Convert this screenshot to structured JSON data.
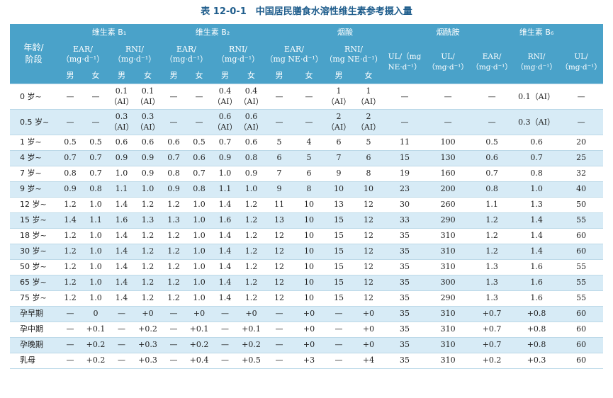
{
  "caption": "表 12-0-1　中国居民膳食水溶性维生素参考摄入量",
  "header": {
    "age_label": [
      "年龄/",
      "阶段"
    ],
    "groups": [
      "维生素 B₁",
      "维生素 B₂",
      "烟酸",
      "烟酰胺",
      "维生素 B₆"
    ],
    "sub": {
      "b1_ear": [
        "EAR/",
        "（mg·d⁻¹）"
      ],
      "b1_rni": [
        "RNI/",
        "（mg·d⁻¹）"
      ],
      "b2_ear": [
        "EAR/",
        "（mg·d⁻¹）"
      ],
      "b2_rni": [
        "RNI/",
        "（mg·d⁻¹）"
      ],
      "niacin_ear": [
        "EAR/",
        "（mg NE·d⁻¹）"
      ],
      "niacin_rni": [
        "RNI/",
        "（mg NE·d⁻¹）"
      ],
      "niacin_ul": [
        "UL/（mg",
        "NE·d⁻¹）"
      ],
      "niacinamide_ul": [
        "UL/",
        "（mg·d⁻¹）"
      ],
      "b6_ear": [
        "EAR/",
        "（mg·d⁻¹）"
      ],
      "b6_rni": [
        "RNI/",
        "（mg·d⁻¹）"
      ],
      "b6_ul": [
        "UL/",
        "（mg·d⁻¹）"
      ]
    },
    "sex": [
      "男",
      "女"
    ]
  },
  "rows": [
    {
      "age": "0 岁~",
      "tall": true,
      "shade": false,
      "full": false,
      "cells": [
        "—",
        "—",
        "0.1\n（AI）",
        "0.1\n（AI）",
        "—",
        "—",
        "0.4\n（AI）",
        "0.4\n（AI）",
        "—",
        "—",
        "1\n（AI）",
        "1\n（AI）",
        "—",
        "—",
        "—",
        "0.1（AI）",
        "—"
      ]
    },
    {
      "age": "0.5 岁~",
      "tall": true,
      "shade": true,
      "full": false,
      "cells": [
        "—",
        "—",
        "0.3\n（AI）",
        "0.3\n（AI）",
        "—",
        "—",
        "0.6\n（AI）",
        "0.6\n（AI）",
        "—",
        "—",
        "2\n（AI）",
        "2\n（AI）",
        "—",
        "—",
        "—",
        "0.3（AI）",
        "—"
      ]
    },
    {
      "age": "1 岁~",
      "shade": false,
      "full": true,
      "cells": [
        "0.5",
        "0.5",
        "0.6",
        "0.6",
        "0.6",
        "0.5",
        "0.7",
        "0.6",
        "5",
        "4",
        "6",
        "5",
        "11",
        "100",
        "0.5",
        "0.6",
        "20"
      ]
    },
    {
      "age": "4 岁~",
      "shade": true,
      "full": true,
      "cells": [
        "0.7",
        "0.7",
        "0.9",
        "0.9",
        "0.7",
        "0.6",
        "0.9",
        "0.8",
        "6",
        "5",
        "7",
        "6",
        "15",
        "130",
        "0.6",
        "0.7",
        "25"
      ]
    },
    {
      "age": "7 岁~",
      "shade": false,
      "full": true,
      "cells": [
        "0.8",
        "0.7",
        "1.0",
        "0.9",
        "0.8",
        "0.7",
        "1.0",
        "0.9",
        "7",
        "6",
        "9",
        "8",
        "19",
        "160",
        "0.7",
        "0.8",
        "32"
      ]
    },
    {
      "age": "9 岁~",
      "shade": true,
      "full": true,
      "cells": [
        "0.9",
        "0.8",
        "1.1",
        "1.0",
        "0.9",
        "0.8",
        "1.1",
        "1.0",
        "9",
        "8",
        "10",
        "10",
        "23",
        "200",
        "0.8",
        "1.0",
        "40"
      ]
    },
    {
      "age": "12 岁~",
      "shade": false,
      "full": true,
      "cells": [
        "1.2",
        "1.0",
        "1.4",
        "1.2",
        "1.2",
        "1.0",
        "1.4",
        "1.2",
        "11",
        "10",
        "13",
        "12",
        "30",
        "260",
        "1.1",
        "1.3",
        "50"
      ]
    },
    {
      "age": "15 岁~",
      "shade": true,
      "full": true,
      "cells": [
        "1.4",
        "1.1",
        "1.6",
        "1.3",
        "1.3",
        "1.0",
        "1.6",
        "1.2",
        "13",
        "10",
        "15",
        "12",
        "33",
        "290",
        "1.2",
        "1.4",
        "55"
      ]
    },
    {
      "age": "18 岁~",
      "shade": false,
      "full": true,
      "cells": [
        "1.2",
        "1.0",
        "1.4",
        "1.2",
        "1.2",
        "1.0",
        "1.4",
        "1.2",
        "12",
        "10",
        "15",
        "12",
        "35",
        "310",
        "1.2",
        "1.4",
        "60"
      ]
    },
    {
      "age": "30 岁~",
      "shade": true,
      "full": true,
      "cells": [
        "1.2",
        "1.0",
        "1.4",
        "1.2",
        "1.2",
        "1.0",
        "1.4",
        "1.2",
        "12",
        "10",
        "15",
        "12",
        "35",
        "310",
        "1.2",
        "1.4",
        "60"
      ]
    },
    {
      "age": "50 岁~",
      "shade": false,
      "full": true,
      "cells": [
        "1.2",
        "1.0",
        "1.4",
        "1.2",
        "1.2",
        "1.0",
        "1.4",
        "1.2",
        "12",
        "10",
        "15",
        "12",
        "35",
        "310",
        "1.3",
        "1.6",
        "55"
      ]
    },
    {
      "age": "65 岁~",
      "shade": true,
      "full": true,
      "cells": [
        "1.2",
        "1.0",
        "1.4",
        "1.2",
        "1.2",
        "1.0",
        "1.4",
        "1.2",
        "12",
        "10",
        "15",
        "12",
        "35",
        "300",
        "1.3",
        "1.6",
        "55"
      ]
    },
    {
      "age": "75 岁~",
      "shade": false,
      "full": true,
      "cells": [
        "1.2",
        "1.0",
        "1.4",
        "1.2",
        "1.2",
        "1.0",
        "1.4",
        "1.2",
        "12",
        "10",
        "15",
        "12",
        "35",
        "290",
        "1.3",
        "1.6",
        "55"
      ]
    },
    {
      "age": "孕早期",
      "shade": true,
      "full": true,
      "cells": [
        "—",
        "0",
        "—",
        "+0",
        "—",
        "+0",
        "—",
        "+0",
        "—",
        "+0",
        "—",
        "+0",
        "35",
        "310",
        "+0.7",
        "+0.8",
        "60"
      ]
    },
    {
      "age": "孕中期",
      "shade": false,
      "full": true,
      "cells": [
        "—",
        "+0.1",
        "—",
        "+0.2",
        "—",
        "+0.1",
        "—",
        "+0.1",
        "—",
        "+0",
        "—",
        "+0",
        "35",
        "310",
        "+0.7",
        "+0.8",
        "60"
      ]
    },
    {
      "age": "孕晚期",
      "shade": true,
      "full": true,
      "cells": [
        "—",
        "+0.2",
        "—",
        "+0.3",
        "—",
        "+0.2",
        "—",
        "+0.2",
        "—",
        "+0",
        "—",
        "+0",
        "35",
        "310",
        "+0.7",
        "+0.8",
        "60"
      ]
    },
    {
      "age": "乳母",
      "shade": false,
      "full": true,
      "cells": [
        "—",
        "+0.2",
        "—",
        "+0.3",
        "—",
        "+0.4",
        "—",
        "+0.5",
        "—",
        "+3",
        "—",
        "+4",
        "35",
        "310",
        "+0.2",
        "+0.3",
        "60"
      ]
    }
  ]
}
